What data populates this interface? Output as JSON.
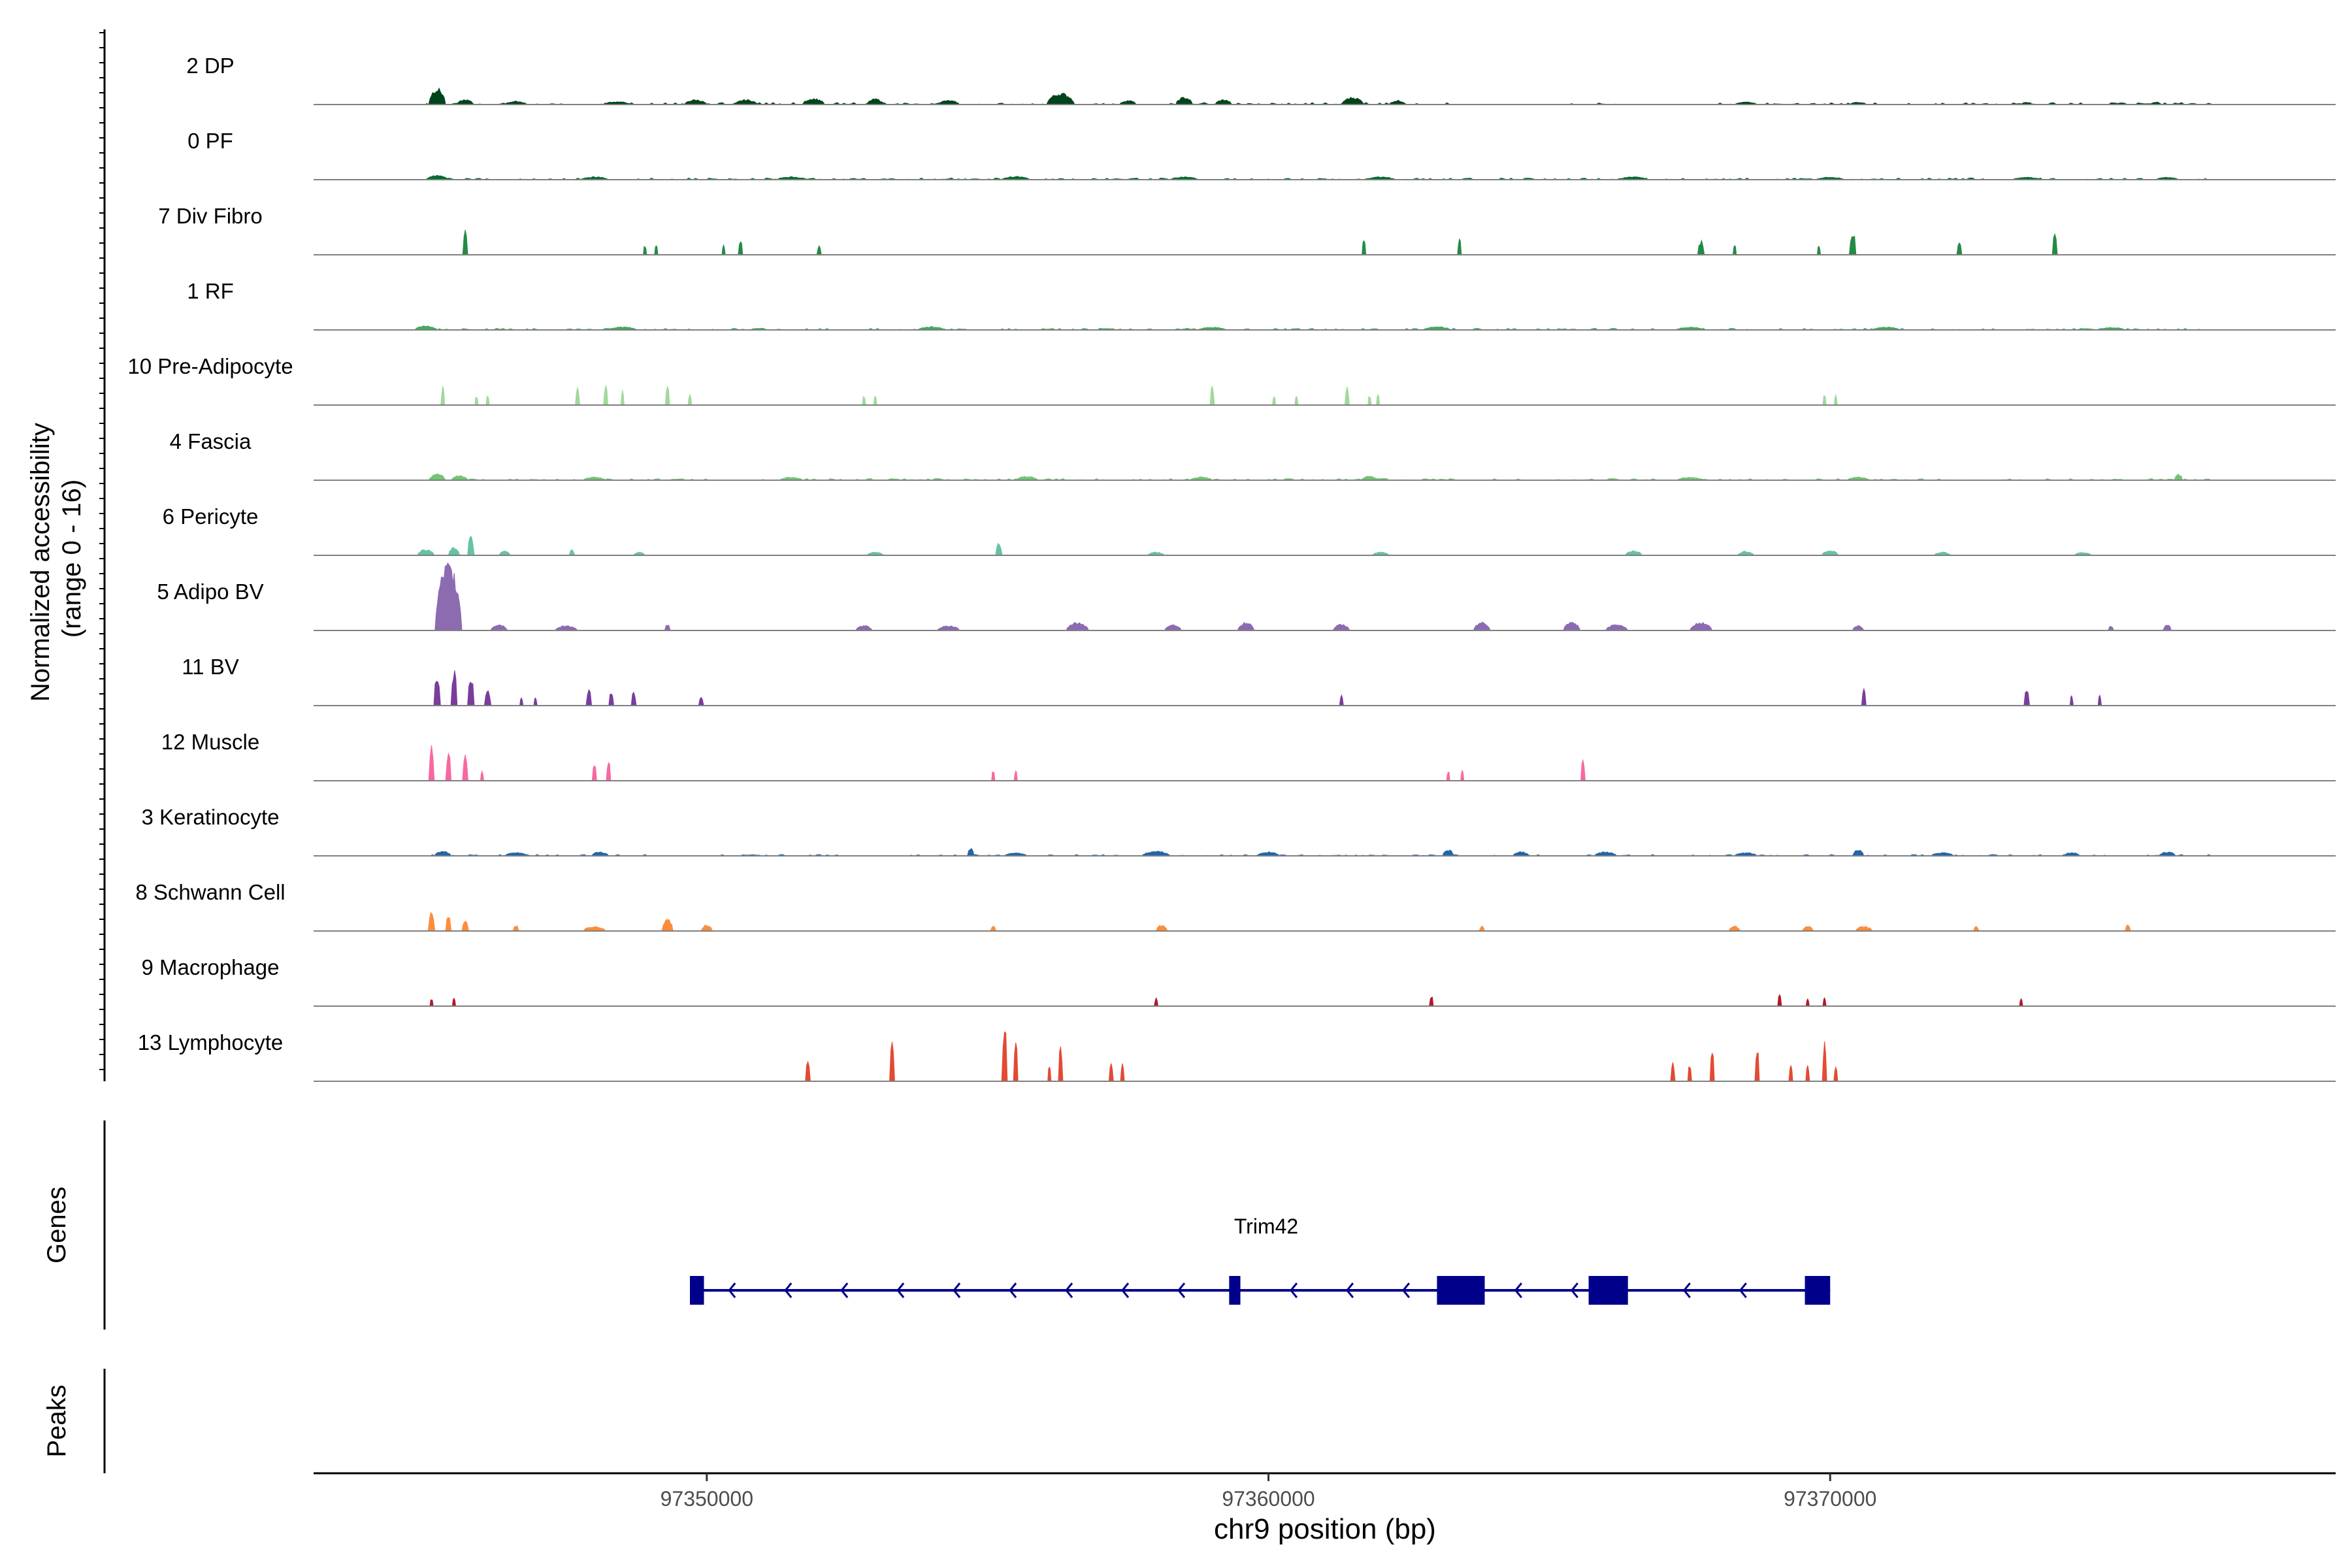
{
  "chart_data": {
    "type": "area",
    "title": "",
    "y_axis_label_line1": "Normalized accessibility",
    "y_axis_label_line2": "(range 0 - 16)",
    "y_range": [
      0,
      16
    ],
    "x_axis_label": "chr9 position (bp)",
    "x_range": [
      97343000,
      97379000
    ],
    "x_ticks": [
      97350000,
      97360000,
      97370000
    ],
    "x_tick_labels": [
      "97350000",
      "97360000",
      "97370000"
    ],
    "series": [
      {
        "name": "2 DP",
        "color": "#00441b",
        "baseline": 0.35,
        "peaks": [
          [
            97345200,
            4.0,
            300
          ],
          [
            97345700,
            1.2,
            300
          ],
          [
            97346600,
            0.8,
            400
          ],
          [
            97348400,
            0.7,
            500
          ],
          [
            97349800,
            1.2,
            400
          ],
          [
            97350700,
            1.2,
            400
          ],
          [
            97351900,
            1.5,
            400
          ],
          [
            97353000,
            1.4,
            300
          ],
          [
            97354300,
            1.0,
            400
          ],
          [
            97356300,
            2.8,
            500
          ],
          [
            97357500,
            1.0,
            300
          ],
          [
            97358500,
            1.8,
            300
          ],
          [
            97359200,
            1.2,
            300
          ],
          [
            97361500,
            1.8,
            400
          ],
          [
            97362300,
            1.0,
            300
          ],
          [
            97368500,
            0.6,
            400
          ],
          [
            97370500,
            0.6,
            300
          ],
          [
            97373500,
            0.6,
            200
          ],
          [
            97375800,
            0.6,
            200
          ]
        ],
        "gaps": [
          [
            97363200,
            97365200
          ],
          [
            97366200,
            97368000
          ]
        ]
      },
      {
        "name": "0 PF",
        "color": "#006d2c",
        "baseline": 0.3,
        "peaks": [
          [
            97345200,
            1.0,
            400
          ],
          [
            97348000,
            0.7,
            500
          ],
          [
            97351500,
            0.7,
            500
          ],
          [
            97355500,
            0.8,
            500
          ],
          [
            97358500,
            0.7,
            500
          ],
          [
            97362000,
            0.7,
            500
          ],
          [
            97366500,
            0.7,
            500
          ],
          [
            97370000,
            0.6,
            500
          ],
          [
            97373500,
            0.6,
            500
          ],
          [
            97376000,
            0.6,
            400
          ]
        ],
        "gaps": []
      },
      {
        "name": "7 Div Fibro",
        "color": "#238b45",
        "baseline": 0,
        "peaks": [
          [
            97345700,
            7.0,
            90
          ],
          [
            97348900,
            2.5,
            60
          ],
          [
            97349100,
            2.5,
            60
          ],
          [
            97350300,
            2.5,
            60
          ],
          [
            97350600,
            3.5,
            80
          ],
          [
            97352000,
            2.2,
            80
          ],
          [
            97361700,
            4.0,
            70
          ],
          [
            97363400,
            4.0,
            70
          ],
          [
            97367700,
            3.5,
            120
          ],
          [
            97368300,
            2.5,
            60
          ],
          [
            97369800,
            2.5,
            60
          ],
          [
            97370400,
            6.0,
            120
          ],
          [
            97372300,
            3.5,
            90
          ],
          [
            97374000,
            5.0,
            90
          ]
        ],
        "gaps": []
      },
      {
        "name": "1 RF",
        "color": "#41ab5d",
        "baseline": 0.3,
        "peaks": [
          [
            97345000,
            1.0,
            400
          ],
          [
            97348500,
            0.8,
            500
          ],
          [
            97354000,
            0.8,
            500
          ],
          [
            97359000,
            0.7,
            500
          ],
          [
            97363000,
            0.8,
            500
          ],
          [
            97367500,
            0.7,
            500
          ],
          [
            97371000,
            0.7,
            500
          ],
          [
            97375000,
            0.6,
            500
          ]
        ],
        "gaps": []
      },
      {
        "name": "10 Pre-Adipocyte",
        "color": "#a1d99b",
        "baseline": 0,
        "peaks": [
          [
            97345300,
            4.5,
            70
          ],
          [
            97345900,
            2.5,
            60
          ],
          [
            97346100,
            2.5,
            60
          ],
          [
            97347700,
            4.5,
            80
          ],
          [
            97348200,
            5.0,
            80
          ],
          [
            97348500,
            3.5,
            60
          ],
          [
            97349300,
            4.5,
            80
          ],
          [
            97349700,
            2.5,
            70
          ],
          [
            97352800,
            2.5,
            60
          ],
          [
            97353000,
            2.5,
            60
          ],
          [
            97359000,
            4.5,
            80
          ],
          [
            97360100,
            2.5,
            60
          ],
          [
            97360500,
            2.5,
            60
          ],
          [
            97361400,
            4.5,
            80
          ],
          [
            97361800,
            2.5,
            60
          ],
          [
            97361950,
            2.5,
            60
          ],
          [
            97369900,
            2.5,
            60
          ],
          [
            97370100,
            2.5,
            60
          ]
        ],
        "gaps": []
      },
      {
        "name": "4 Fascia",
        "color": "#74c476",
        "baseline": 0.3,
        "peaks": [
          [
            97345200,
            1.5,
            300
          ],
          [
            97345600,
            1.2,
            300
          ],
          [
            97348000,
            0.8,
            400
          ],
          [
            97351500,
            0.8,
            400
          ],
          [
            97355700,
            1.0,
            400
          ],
          [
            97358800,
            0.8,
            400
          ],
          [
            97361800,
            1.0,
            300
          ],
          [
            97367500,
            0.8,
            400
          ],
          [
            97370500,
            0.8,
            400
          ],
          [
            97376200,
            1.5,
            150
          ]
        ],
        "gaps": []
      },
      {
        "name": "6 Pericyte",
        "color": "#66c2a4",
        "baseline": 0,
        "peaks": [
          [
            97345000,
            1.5,
            300
          ],
          [
            97345500,
            2.0,
            200
          ],
          [
            97345800,
            5.0,
            120
          ],
          [
            97346400,
            1.2,
            200
          ],
          [
            97347600,
            1.5,
            100
          ],
          [
            97348800,
            0.8,
            200
          ],
          [
            97353000,
            0.8,
            300
          ],
          [
            97355200,
            3.0,
            120
          ],
          [
            97358000,
            0.8,
            300
          ],
          [
            97362000,
            0.8,
            300
          ],
          [
            97366500,
            1.2,
            300
          ],
          [
            97368500,
            1.0,
            300
          ],
          [
            97370000,
            1.2,
            300
          ],
          [
            97372000,
            0.8,
            300
          ],
          [
            97374500,
            0.8,
            300
          ]
        ],
        "gaps": [
          [
            97356500,
            97357500
          ],
          [
            97363500,
            97366000
          ]
        ]
      },
      {
        "name": "5 Adipo BV",
        "color": "#8c6bb1",
        "baseline": 0,
        "peaks": [
          [
            97345400,
            16.0,
            480
          ],
          [
            97346300,
            1.5,
            300
          ],
          [
            97347500,
            1.2,
            400
          ],
          [
            97349300,
            1.5,
            100
          ],
          [
            97352800,
            1.2,
            300
          ],
          [
            97354300,
            1.2,
            400
          ],
          [
            97356600,
            2.0,
            400
          ],
          [
            97358300,
            1.5,
            300
          ],
          [
            97359600,
            2.0,
            300
          ],
          [
            97361300,
            1.5,
            300
          ],
          [
            97363800,
            2.0,
            300
          ],
          [
            97365400,
            2.0,
            300
          ],
          [
            97366200,
            1.5,
            400
          ],
          [
            97367700,
            2.0,
            400
          ],
          [
            97370500,
            1.2,
            200
          ],
          [
            97375000,
            1.2,
            100
          ],
          [
            97376000,
            1.5,
            150
          ]
        ],
        "gaps": []
      },
      {
        "name": "11 BV",
        "color": "#7a3d9c",
        "baseline": 0,
        "peaks": [
          [
            97345200,
            8.0,
            120
          ],
          [
            97345500,
            9.0,
            110
          ],
          [
            97345800,
            7.0,
            120
          ],
          [
            97346100,
            4.0,
            120
          ],
          [
            97346700,
            2.0,
            60
          ],
          [
            97346950,
            2.0,
            60
          ],
          [
            97347900,
            4.0,
            100
          ],
          [
            97348300,
            3.5,
            90
          ],
          [
            97348700,
            3.5,
            90
          ],
          [
            97349900,
            2.5,
            90
          ],
          [
            97361300,
            2.5,
            70
          ],
          [
            97370600,
            4.0,
            80
          ],
          [
            97373500,
            4.5,
            100
          ],
          [
            97374300,
            2.5,
            60
          ],
          [
            97374800,
            2.5,
            60
          ]
        ],
        "gaps": []
      },
      {
        "name": "12 Muscle",
        "color": "#f768a1",
        "baseline": 0,
        "peaks": [
          [
            97345100,
            9.5,
            100
          ],
          [
            97345400,
            7.0,
            100
          ],
          [
            97345700,
            7.5,
            100
          ],
          [
            97346000,
            2.5,
            60
          ],
          [
            97348000,
            5.0,
            80
          ],
          [
            97348250,
            5.0,
            80
          ],
          [
            97355100,
            2.5,
            60
          ],
          [
            97355500,
            2.5,
            60
          ],
          [
            97363200,
            2.5,
            60
          ],
          [
            97363450,
            2.5,
            60
          ],
          [
            97365600,
            5.0,
            80
          ]
        ],
        "gaps": []
      },
      {
        "name": "3 Keratinocyte",
        "color": "#2166ac",
        "baseline": 0.25,
        "peaks": [
          [
            97345300,
            1.2,
            300
          ],
          [
            97346600,
            0.8,
            400
          ],
          [
            97348100,
            1.0,
            300
          ],
          [
            97354700,
            2.0,
            120
          ],
          [
            97355500,
            0.8,
            400
          ],
          [
            97358000,
            1.2,
            500
          ],
          [
            97360000,
            1.0,
            400
          ],
          [
            97363200,
            1.5,
            200
          ],
          [
            97364500,
            1.0,
            300
          ],
          [
            97366000,
            1.0,
            400
          ],
          [
            97368500,
            0.8,
            400
          ],
          [
            97370500,
            1.5,
            200
          ],
          [
            97372000,
            0.8,
            400
          ],
          [
            97374300,
            0.8,
            300
          ],
          [
            97376000,
            1.0,
            300
          ]
        ],
        "gaps": [
          [
            97352500,
            97353500
          ],
          [
            97365000,
            97365600
          ]
        ]
      },
      {
        "name": "8 Schwann Cell",
        "color": "#fd8d3c",
        "baseline": 0,
        "peaks": [
          [
            97345100,
            5.0,
            120
          ],
          [
            97345400,
            4.0,
            100
          ],
          [
            97345700,
            3.0,
            120
          ],
          [
            97346600,
            1.5,
            100
          ],
          [
            97348000,
            1.2,
            400
          ],
          [
            97349300,
            3.0,
            200
          ],
          [
            97350000,
            1.5,
            200
          ],
          [
            97355100,
            1.2,
            100
          ],
          [
            97358100,
            1.5,
            200
          ],
          [
            97363800,
            1.2,
            100
          ],
          [
            97368300,
            1.2,
            200
          ],
          [
            97369600,
            1.2,
            200
          ],
          [
            97370600,
            1.2,
            300
          ],
          [
            97372600,
            1.2,
            100
          ],
          [
            97375300,
            1.5,
            100
          ]
        ],
        "gaps": []
      },
      {
        "name": "9 Macrophage",
        "color": "#b2182b",
        "baseline": 0,
        "peaks": [
          [
            97345100,
            2.0,
            60
          ],
          [
            97345500,
            2.0,
            60
          ],
          [
            97358000,
            2.0,
            70
          ],
          [
            97362900,
            2.8,
            70
          ],
          [
            97369100,
            3.0,
            70
          ],
          [
            97369600,
            2.0,
            60
          ],
          [
            97369900,
            2.0,
            60
          ],
          [
            97373400,
            2.0,
            60
          ]
        ],
        "gaps": []
      },
      {
        "name": "13 Lymphocyte",
        "color": "#e34a33",
        "baseline": 0,
        "peaks": [
          [
            97351800,
            5.0,
            90
          ],
          [
            97353300,
            10.0,
            90
          ],
          [
            97355300,
            14.0,
            100
          ],
          [
            97355500,
            10.0,
            80
          ],
          [
            97356300,
            9.0,
            80
          ],
          [
            97356100,
            4.0,
            60
          ],
          [
            97357200,
            5.0,
            80
          ],
          [
            97357400,
            4.5,
            70
          ],
          [
            97367200,
            5.0,
            80
          ],
          [
            97367500,
            4.5,
            70
          ],
          [
            97367900,
            9.0,
            80
          ],
          [
            97368700,
            9.0,
            80
          ],
          [
            97369300,
            4.0,
            70
          ],
          [
            97369600,
            4.0,
            70
          ],
          [
            97369900,
            9.5,
            80
          ],
          [
            97370100,
            4.0,
            70
          ]
        ],
        "gaps": []
      }
    ]
  },
  "genes": {
    "title": "Genes",
    "gene_name": "Trim42",
    "strand": "-",
    "color": "#00008b",
    "start": 97349700,
    "end": 97370000,
    "exons": [
      [
        97349700,
        97349950
      ],
      [
        97359300,
        97359500
      ],
      [
        97363000,
        97363850
      ],
      [
        97365700,
        97366400
      ],
      [
        97369550,
        97370000
      ]
    ]
  },
  "peaks": {
    "title": "Peaks"
  }
}
